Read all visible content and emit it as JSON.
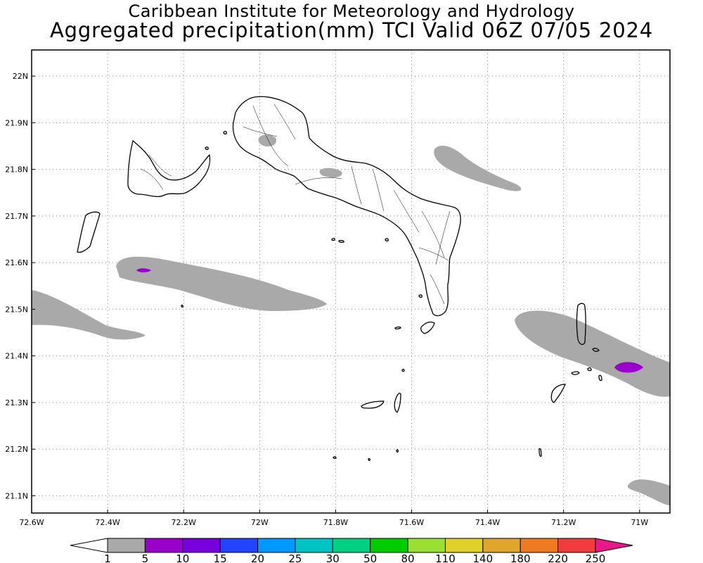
{
  "header": {
    "institute": "Caribbean Institute for Meteorology and Hydrology",
    "product": "Aggregated precipitation(mm) TCI Valid 06Z 07/05 2024"
  },
  "map": {
    "lon_ticks": [
      "72.6W",
      "72.4W",
      "72.2W",
      "72W",
      "71.8W",
      "71.6W",
      "71.4W",
      "71.2W",
      "71W"
    ],
    "lat_ticks": [
      "22N",
      "21.9N",
      "21.8N",
      "21.7N",
      "21.6N",
      "21.5N",
      "21.4N",
      "21.3N",
      "21.2N",
      "21.1N"
    ],
    "grid": "dotted",
    "extent": {
      "lon_min": -72.6,
      "lon_max": -70.92,
      "lat_min": 21.063,
      "lat_max": 22.056
    }
  },
  "legend": {
    "colors": [
      "#ffffff",
      "#a9a9a9",
      "#9900cc",
      "#7700dd",
      "#2244ff",
      "#0099ff",
      "#00c4c4",
      "#00d080",
      "#00cc00",
      "#99e033",
      "#e2d02a",
      "#e0a52a",
      "#f07a22",
      "#f03c3c",
      "#e8188a"
    ],
    "labels": [
      "1",
      "5",
      "10",
      "15",
      "20",
      "25",
      "30",
      "50",
      "80",
      "110",
      "140",
      "180",
      "220",
      "250"
    ]
  }
}
